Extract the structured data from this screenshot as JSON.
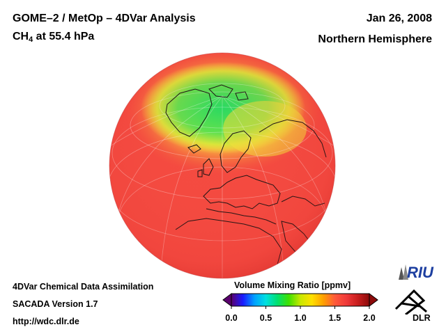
{
  "header": {
    "title_main": "GOME–2 / MetOp – 4DVar Analysis",
    "species_prefix": "CH",
    "species_subscript": "4",
    "species_suffix": " at 55.4 hPa",
    "date": "Jan 26, 2008",
    "region": "Northern Hemisphere"
  },
  "footer": {
    "line1": "4DVar Chemical Data Assimilation",
    "line2": "SACADA Version 1.7",
    "line3": "http://wdc.dlr.de"
  },
  "colorbar": {
    "title": "Volume Mixing Ratio [ppmv]",
    "ticks": [
      "0.0",
      "0.5",
      "1.0",
      "1.5",
      "2.0"
    ],
    "colors": [
      "#5a006e",
      "#1a1aff",
      "#00a0ff",
      "#00e0e0",
      "#00e070",
      "#40e000",
      "#c8e800",
      "#ffe000",
      "#ffa000",
      "#ff5a3a",
      "#f03a3a",
      "#c81e1e",
      "#8c0a0a"
    ]
  },
  "map": {
    "projection": "orthographic",
    "background_field_color": "#f44a40",
    "high_anomaly_color": "#27e05f",
    "transition_color": "#f6e33a"
  },
  "logos": {
    "riu_text": "RIU",
    "dlr_text": "DLR"
  }
}
